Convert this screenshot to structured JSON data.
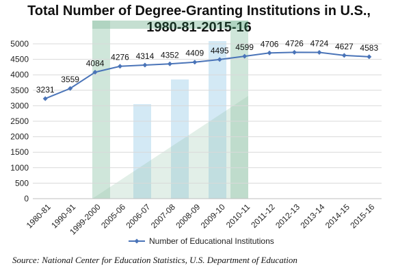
{
  "chart_data": {
    "type": "line",
    "title_line1": "Total Number of Degree-Granting Institutions in U.S.,",
    "title_line2": "1980-81-2015-16",
    "categories": [
      "1980-81",
      "1990-91",
      "1999-2000",
      "2005-06",
      "2006-07",
      "2007-08",
      "2008-09",
      "2009-10",
      "2010-11",
      "2011-12",
      "2012-13",
      "2013-14",
      "2014-15",
      "2015-16"
    ],
    "series": [
      {
        "name": "Number of Educational Institutions",
        "values": [
          3231,
          3559,
          4084,
          4276,
          4314,
          4352,
          4409,
          4495,
          4599,
          4706,
          4726,
          4724,
          4627,
          4583
        ]
      }
    ],
    "ylim": [
      0,
      5000
    ],
    "yticks": [
      0,
      500,
      1000,
      1500,
      2000,
      2500,
      3000,
      3500,
      4000,
      4500,
      5000
    ],
    "grid": "horizontal",
    "legend": "bottom",
    "line_color": "#4a74b8"
  },
  "source": "Source: National Center for Education Statistics, U.S. Department of Education"
}
